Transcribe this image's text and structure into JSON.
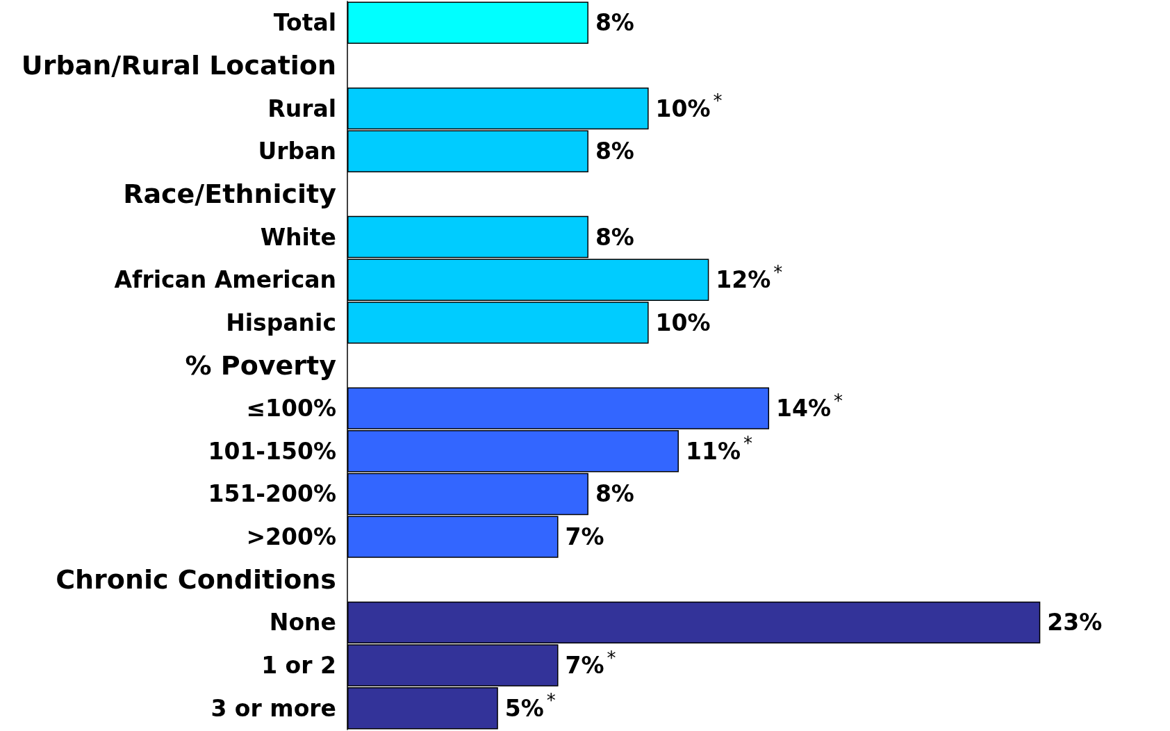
{
  "chart_data": {
    "type": "bar",
    "orientation": "horizontal",
    "tick_labels": "y",
    "categories": [
      "Total",
      "Urban/Rural Location",
      "Rural",
      "Urban",
      "Race/Ethnicity",
      "White",
      "African American",
      "Hispanic",
      "% Poverty",
      "≤100%",
      "101-150%",
      "151-200%",
      ">200%",
      "Chronic Conditions",
      "None",
      "1 or 2",
      "3 or more"
    ],
    "values": [
      8,
      null,
      10,
      8,
      null,
      8,
      12,
      10,
      null,
      14,
      11,
      8,
      7,
      null,
      23,
      7,
      5
    ],
    "value_labels": [
      "8%",
      null,
      "10%$^{*}$",
      "8%",
      null,
      "8%",
      "12%$^{*}$",
      "10%",
      null,
      "14%$^{*}$",
      "11%$^{*}$",
      "8%",
      "7%",
      null,
      "23%",
      "7%$^{*}$",
      "5%$^{*}$"
    ],
    "colors": [
      "#00ffff",
      null,
      "#00ccff",
      "#00ccff",
      null,
      "#00ccff",
      "#00ccff",
      "#00ccff",
      null,
      "#3366ff",
      "#3366ff",
      "#3366ff",
      "#3366ff",
      null,
      "#333399",
      "#333399",
      "#333399"
    ]
  }
}
